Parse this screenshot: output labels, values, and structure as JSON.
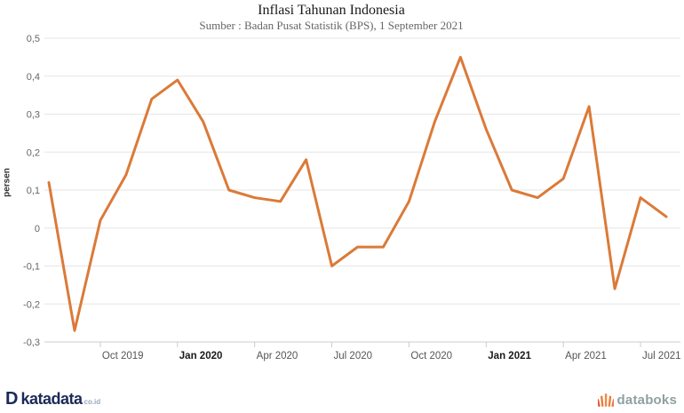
{
  "header": {
    "title": "Inflasi Tahunan Indonesia",
    "subtitle": "Sumber : Badan Pusat Statistik (BPS), 1 September 2021"
  },
  "chart_data": {
    "type": "line",
    "title": "Inflasi Tahunan Indonesia",
    "subtitle": "Sumber : Badan Pusat Statistik (BPS), 1 September 2021",
    "xlabel": "",
    "ylabel": "persen",
    "ylim": [
      -0.3,
      0.5
    ],
    "grid": true,
    "legend": "none",
    "series_color": "#DB7A38",
    "x": [
      "Aug 2019",
      "Sep 2019",
      "Oct 2019",
      "Nov 2019",
      "Dec 2019",
      "Jan 2020",
      "Feb 2020",
      "Mar 2020",
      "Apr 2020",
      "May 2020",
      "Jun 2020",
      "Jul 2020",
      "Aug 2020",
      "Sep 2020",
      "Oct 2020",
      "Nov 2020",
      "Dec 2020",
      "Jan 2021",
      "Feb 2021",
      "Mar 2021",
      "Apr 2021",
      "May 2021",
      "Jun 2021",
      "Jul 2021",
      "Aug 2021"
    ],
    "values": [
      0.12,
      -0.27,
      0.02,
      0.14,
      0.34,
      0.39,
      0.28,
      0.1,
      0.08,
      0.07,
      0.18,
      -0.1,
      -0.05,
      -0.05,
      0.07,
      0.28,
      0.45,
      0.26,
      0.1,
      0.08,
      0.13,
      0.32,
      -0.16,
      0.08,
      0.03
    ],
    "y_ticks": [
      {
        "value": 0.5,
        "label": "0,5"
      },
      {
        "value": 0.4,
        "label": "0,4"
      },
      {
        "value": 0.3,
        "label": "0,3"
      },
      {
        "value": 0.2,
        "label": "0,2"
      },
      {
        "value": 0.1,
        "label": "0,1"
      },
      {
        "value": 0,
        "label": "0"
      },
      {
        "value": -0.1,
        "label": "-0,1"
      },
      {
        "value": -0.2,
        "label": "-0,2"
      },
      {
        "value": -0.3,
        "label": "-0,3"
      }
    ],
    "x_ticks": [
      {
        "index": 2,
        "label": "Oct 2019",
        "bold": false
      },
      {
        "index": 5,
        "label": "Jan 2020",
        "bold": true
      },
      {
        "index": 8,
        "label": "Apr 2020",
        "bold": false
      },
      {
        "index": 11,
        "label": "Jul 2020",
        "bold": false
      },
      {
        "index": 14,
        "label": "Oct 2020",
        "bold": false
      },
      {
        "index": 17,
        "label": "Jan 2021",
        "bold": true
      },
      {
        "index": 20,
        "label": "Apr 2021",
        "bold": false
      },
      {
        "index": 23,
        "label": "Jul 2021",
        "bold": false
      }
    ]
  },
  "colors": {
    "series": "#DB7A38",
    "gridline": "#e6e6e6",
    "axis_line": "#cccccc",
    "y_tick_text": "#666666",
    "x_tick_text": "#555555",
    "x_tick_text_bold": "#1a1a1a",
    "katadata_navy": "#1b2b57",
    "databoks_gray": "#8fa0a0",
    "databoks_orange": "#ef7d3b"
  },
  "footer": {
    "katadata": {
      "mark": "D",
      "brand": "katadata",
      "suffix": "co.id"
    },
    "databoks": {
      "brand": "databoks"
    }
  }
}
